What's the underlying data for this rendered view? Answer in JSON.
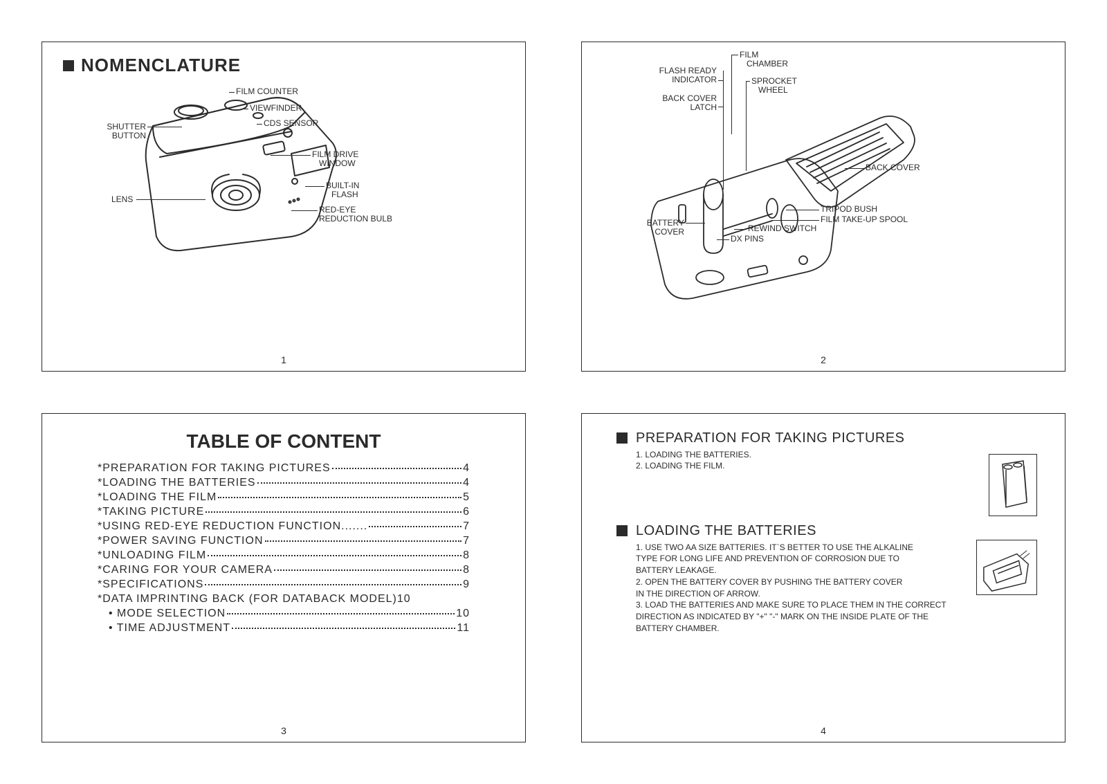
{
  "page_numbers": {
    "p1": "1",
    "p2": "2",
    "p3": "3",
    "p4": "4"
  },
  "panel1": {
    "title": "NOMENCLATURE",
    "labels": {
      "shutter_button_l1": "SHUTTER",
      "shutter_button_l2": "BUTTON",
      "lens": "LENS",
      "film_counter": "FILM COUNTER",
      "viewfinder": "VIEWFINDER",
      "cds_sensor": "CDS SENSOR",
      "film_drive_l1": "FILM DRIVE",
      "film_drive_l2": "WINDOW",
      "builtin_l1": "BUILT-IN",
      "builtin_l2": "FLASH",
      "redeye_l1": "RED-EYE",
      "redeye_l2": "REDUCTION BULB"
    }
  },
  "panel2": {
    "labels": {
      "flash_ready_l1": "FLASH READY",
      "flash_ready_l2": "INDICATOR",
      "back_cover_latch_l1": "BACK  COVER",
      "back_cover_latch_l2": "LATCH",
      "battery_cover_l1": "BATTERY",
      "battery_cover_l2": "COVER",
      "film_chamber_l1": "FILM",
      "film_chamber_l2": "CHAMBER",
      "sprocket_l1": "SPROCKET",
      "sprocket_l2": "WHEEL",
      "back_cover": "BACK COVER",
      "tripod_bush": "TRIPOD BUSH",
      "film_takeup": "FILM TAKE-UP SPOOL",
      "rewind_switch": "REWIND SWITCH",
      "dx_pins": "DX PINS"
    }
  },
  "panel3": {
    "title": "TABLE OF CONTENT",
    "items": [
      {
        "t": "*PREPARATION  FOR  TAKING  PICTURES",
        "pg": "4",
        "sub": false,
        "dotted": true
      },
      {
        "t": "*LOADING  THE  BATTERIES ",
        "pg": "4",
        "sub": false,
        "dotted": true
      },
      {
        "t": "*LOADING  THE   FILM",
        "pg": "5",
        "sub": false,
        "dotted": true
      },
      {
        "t": "*TAKING   PICTURE ",
        "pg": "6",
        "sub": false,
        "dotted": true
      },
      {
        "t": "*USING  RED-EYE  REDUCTION  FUNCTION.......  ",
        "pg": "7",
        "sub": false,
        "dotted": true
      },
      {
        "t": "*POWER  SAVING  FUNCTION",
        "pg": "7",
        "sub": false,
        "dotted": true
      },
      {
        "t": "*UNLOADING   FILM",
        "pg": "8",
        "sub": false,
        "dotted": true
      },
      {
        "t": "*CARING  FOR  YOUR  CAMERA",
        "pg": "8",
        "sub": false,
        "dotted": true
      },
      {
        "t": "*SPECIFICATIONS",
        "pg": "9",
        "sub": false,
        "dotted": true
      },
      {
        "t": "*DATA IMPRINTING BACK (FOR DATABACK MODEL)",
        "pg": "10",
        "sub": false,
        "dotted": false
      },
      {
        "t": "• MODE SELECTION",
        "pg": "10",
        "sub": true,
        "dotted": true
      },
      {
        "t": "• TIME  ADJUSTMENT",
        "pg": "11",
        "sub": true,
        "dotted": true
      }
    ]
  },
  "panel4": {
    "sec1_title": "PREPARATION FOR TAKING  PICTURES",
    "sec1_lines": [
      "1. LOADING THE BATTERIES.",
      "2. LOADING THE FILM."
    ],
    "sec2_title": "LOADING THE BATTERIES",
    "sec2_lines": [
      "1. USE TWO AA SIZE BATTERIES. IT`S BETTER TO USE THE ALKALINE",
      "    TYPE FOR LONG LIFE AND PREVENTION OF CORROSION DUE TO",
      "    BATTERY LEAKAGE.",
      "2. OPEN THE BATTERY COVER BY PUSHING THE BATTERY COVER",
      "    IN THE DIRECTION OF ARROW.",
      "3. LOAD THE BATTERIES AND MAKE SURE TO PLACE THEM IN THE CORRECT",
      "    DIRECTION AS INDICATED BY \"+\"  \"-\" MARK ON THE INSIDE PLATE OF THE",
      "    BATTERY CHAMBER."
    ]
  }
}
